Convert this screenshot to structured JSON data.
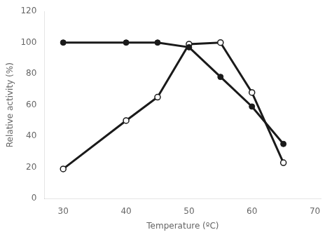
{
  "chart_data": {
    "type": "line",
    "x_label": "Temperature (ºC)",
    "y_label": "Relative activity (%)",
    "x": [
      30,
      40,
      45,
      50,
      55,
      60,
      65
    ],
    "series": [
      {
        "color": "#1a1a1a",
        "marker": "circle",
        "values": [
          100,
          100,
          100,
          97,
          78,
          59,
          35
        ]
      },
      {
        "color": "#1a1a1a",
        "marker": "open_circle",
        "values": [
          19,
          50,
          65,
          99,
          100,
          68,
          23
        ]
      }
    ],
    "xlim": [
      27,
      71
    ],
    "ylim": [
      0,
      120
    ],
    "xticks": [
      30,
      40,
      50,
      60,
      70
    ],
    "yticks": [
      0,
      20,
      40,
      60,
      80,
      100,
      120
    ],
    "grid": false
  }
}
